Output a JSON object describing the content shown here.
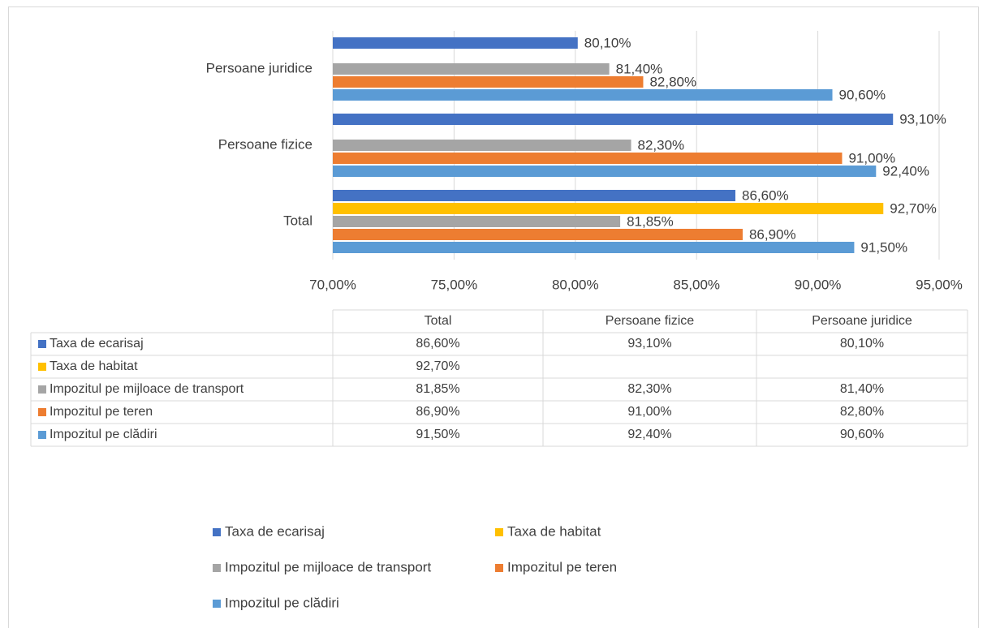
{
  "chart_data": {
    "type": "bar",
    "orientation": "horizontal",
    "categories": [
      "Total",
      "Persoane fizice",
      "Persoane juridice"
    ],
    "series": [
      {
        "name": "Taxa de ecarisaj",
        "color": "#4472c4",
        "values": [
          86.6,
          93.1,
          80.1
        ],
        "value_labels": [
          "86,60%",
          "93,10%",
          "80,10%"
        ]
      },
      {
        "name": "Taxa de habitat",
        "color": "#ffc000",
        "values": [
          92.7,
          null,
          null
        ],
        "value_labels": [
          "92,70%",
          null,
          null
        ]
      },
      {
        "name": "Impozitul pe mijloace de transport",
        "color": "#a5a5a5",
        "values": [
          81.85,
          82.3,
          81.4
        ],
        "value_labels": [
          "81,85%",
          "82,30%",
          "81,40%"
        ]
      },
      {
        "name": "Impozitul pe teren",
        "color": "#ed7d31",
        "values": [
          86.9,
          91.0,
          82.8
        ],
        "value_labels": [
          "86,90%",
          "91,00%",
          "82,80%"
        ]
      },
      {
        "name": "Impozitul pe clădiri",
        "color": "#5b9bd5",
        "values": [
          91.5,
          92.4,
          90.6
        ],
        "value_labels": [
          "91,50%",
          "92,40%",
          "90,60%"
        ]
      }
    ],
    "xlim": [
      70,
      95
    ],
    "xticks": [
      {
        "value": 70,
        "label": "70,00%"
      },
      {
        "value": 75,
        "label": "75,00%"
      },
      {
        "value": 80,
        "label": "80,00%"
      },
      {
        "value": 85,
        "label": "85,00%"
      },
      {
        "value": 90,
        "label": "90,00%"
      },
      {
        "value": 95,
        "label": "95,00%"
      }
    ],
    "grid": true,
    "data_table": true,
    "legend": "bottom"
  }
}
